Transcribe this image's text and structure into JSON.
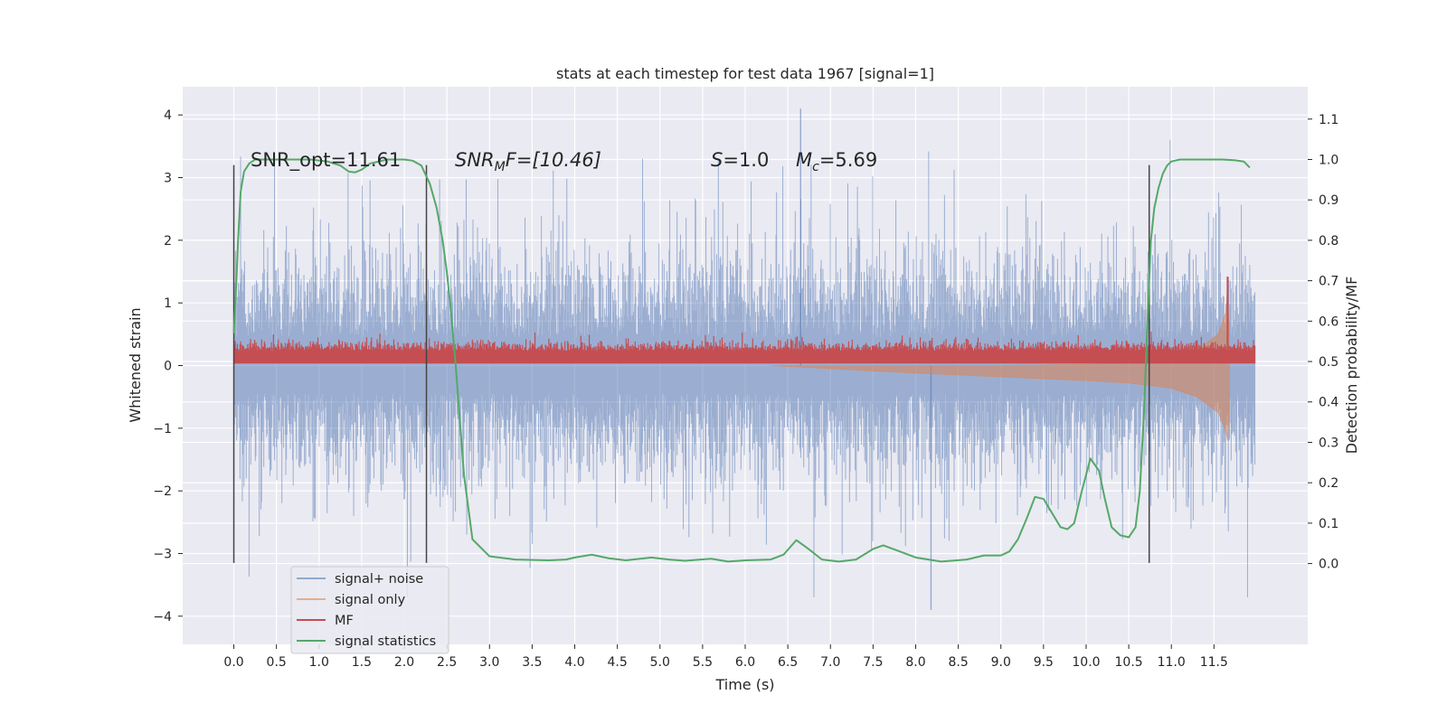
{
  "chart_data": {
    "type": "line",
    "title": "stats at each timestep for test data 1967 [signal=1]",
    "xlabel": "Time (s)",
    "ylabel": "Whitened strain",
    "y2label": "Detection probability/MF",
    "xlim": [
      -0.6,
      12.6
    ],
    "ylim": [
      -4.45,
      4.45
    ],
    "y2lim": [
      -0.2,
      1.18
    ],
    "x_ticks": [
      0.0,
      0.5,
      1.0,
      1.5,
      2.0,
      2.5,
      3.0,
      3.5,
      4.0,
      4.5,
      5.0,
      5.5,
      6.0,
      6.5,
      7.0,
      7.5,
      8.0,
      8.5,
      9.0,
      9.5,
      10.0,
      10.5,
      11.0,
      11.5
    ],
    "x_tick_labels": [
      "0.0",
      "0.5",
      "1.0",
      "1.5",
      "2.0",
      "2.5",
      "3.0",
      "3.5",
      "4.0",
      "4.5",
      "5.0",
      "5.5",
      "6.0",
      "6.5",
      "7.0",
      "7.5",
      "8.0",
      "8.5",
      "9.0",
      "9.5",
      "10.0",
      "10.5",
      "11.0",
      "11.5"
    ],
    "y_ticks": [
      -4,
      -3,
      -2,
      -1,
      0,
      1,
      2,
      3,
      4
    ],
    "y_tick_labels": [
      "−4",
      "−3",
      "−2",
      "−1",
      "0",
      "1",
      "2",
      "3",
      "4"
    ],
    "y2_ticks": [
      0.0,
      0.1,
      0.2,
      0.3,
      0.4,
      0.5,
      0.6,
      0.7,
      0.8,
      0.9,
      1.0,
      1.1
    ],
    "y2_tick_labels": [
      "0.0",
      "0.1",
      "0.2",
      "0.3",
      "0.4",
      "0.5",
      "0.6",
      "0.7",
      "0.8",
      "0.9",
      "1.0",
      "1.1"
    ],
    "grid": true,
    "legend_position": "bottom-left",
    "annotations": {
      "snr_opt": "SNR_opt=11.61",
      "snr_mf_main": "SNR",
      "snr_mf_sub": "M",
      "snr_mf_rest": "F=[10.46]",
      "s_main": "S",
      "s_rest": "=1.0",
      "mc_main": "M",
      "mc_sub": "c",
      "mc_rest": "=5.69"
    },
    "vertical_markers_x": [
      0.0,
      2.26,
      10.74
    ],
    "vertical_markers_range": [
      -3.15,
      3.2
    ],
    "series": [
      {
        "name": "signal+ noise",
        "axis": "left",
        "color": "#4c72b0",
        "description": "whitened noisy strain, roughly Gaussian, amplitude within about ±3.5",
        "time_range": [
          0.0,
          11.98
        ],
        "typical_peak_abs": 2.1,
        "max": 4.1,
        "min": -3.9
      },
      {
        "name": "signal only",
        "axis": "left",
        "color": "#dd8452",
        "description": "chirp envelope growing toward merger",
        "envelope_x": [
          6.3,
          8.0,
          9.0,
          10.0,
          10.5,
          11.0,
          11.3,
          11.55,
          11.64,
          11.66,
          11.68
        ],
        "envelope_upper": [
          0.0,
          0.0,
          0.0,
          0.02,
          0.04,
          0.11,
          0.25,
          0.5,
          0.85,
          1.3,
          0.5
        ],
        "envelope_lower": [
          0.0,
          -0.12,
          -0.18,
          -0.24,
          -0.28,
          -0.36,
          -0.5,
          -0.75,
          -1.05,
          -1.2,
          -0.6
        ]
      },
      {
        "name": "MF",
        "axis": "right",
        "color": "#c44e52",
        "description": "matched-filter output, baseline around 0.51-0.54 with spike near t=11.66",
        "baseline": 0.515,
        "peak_x": 11.66,
        "peak_y": 0.71
      },
      {
        "name": "signal statistics",
        "axis": "right",
        "color": "#55a868",
        "x": [
          0.0,
          0.02,
          0.05,
          0.08,
          0.12,
          0.18,
          0.25,
          0.35,
          0.5,
          0.7,
          0.9,
          1.1,
          1.25,
          1.35,
          1.42,
          1.5,
          1.6,
          1.8,
          2.0,
          2.1,
          2.2,
          2.3,
          2.38,
          2.45,
          2.5,
          2.55,
          2.6,
          2.65,
          2.7,
          2.8,
          3.0,
          3.3,
          3.7,
          3.9,
          4.0,
          4.2,
          4.4,
          4.6,
          4.9,
          5.1,
          5.3,
          5.6,
          5.8,
          6.0,
          6.3,
          6.45,
          6.6,
          6.75,
          6.9,
          7.1,
          7.3,
          7.5,
          7.62,
          7.75,
          8.0,
          8.3,
          8.6,
          8.8,
          9.0,
          9.1,
          9.2,
          9.3,
          9.4,
          9.5,
          9.6,
          9.7,
          9.78,
          9.86,
          9.95,
          10.05,
          10.15,
          10.22,
          10.3,
          10.4,
          10.5,
          10.58,
          10.63,
          10.68,
          10.72,
          10.76,
          10.8,
          10.85,
          10.9,
          10.95,
          11.0,
          11.1,
          11.3,
          11.5,
          11.6,
          11.75,
          11.85,
          11.92
        ],
        "values": [
          0.57,
          0.65,
          0.8,
          0.92,
          0.97,
          0.99,
          1.0,
          1.0,
          1.0,
          1.0,
          1.0,
          0.995,
          0.985,
          0.97,
          0.968,
          0.975,
          0.99,
          1.0,
          1.0,
          0.997,
          0.985,
          0.94,
          0.88,
          0.8,
          0.72,
          0.62,
          0.5,
          0.36,
          0.22,
          0.06,
          0.018,
          0.01,
          0.008,
          0.01,
          0.015,
          0.022,
          0.013,
          0.008,
          0.015,
          0.01,
          0.007,
          0.012,
          0.005,
          0.008,
          0.01,
          0.022,
          0.058,
          0.035,
          0.01,
          0.005,
          0.01,
          0.036,
          0.045,
          0.035,
          0.015,
          0.005,
          0.01,
          0.02,
          0.02,
          0.03,
          0.06,
          0.11,
          0.165,
          0.16,
          0.125,
          0.09,
          0.085,
          0.1,
          0.18,
          0.26,
          0.23,
          0.16,
          0.09,
          0.07,
          0.065,
          0.09,
          0.18,
          0.38,
          0.6,
          0.8,
          0.88,
          0.93,
          0.965,
          0.985,
          0.995,
          1.0,
          1.0,
          1.0,
          1.0,
          0.998,
          0.995,
          0.98
        ]
      }
    ]
  }
}
